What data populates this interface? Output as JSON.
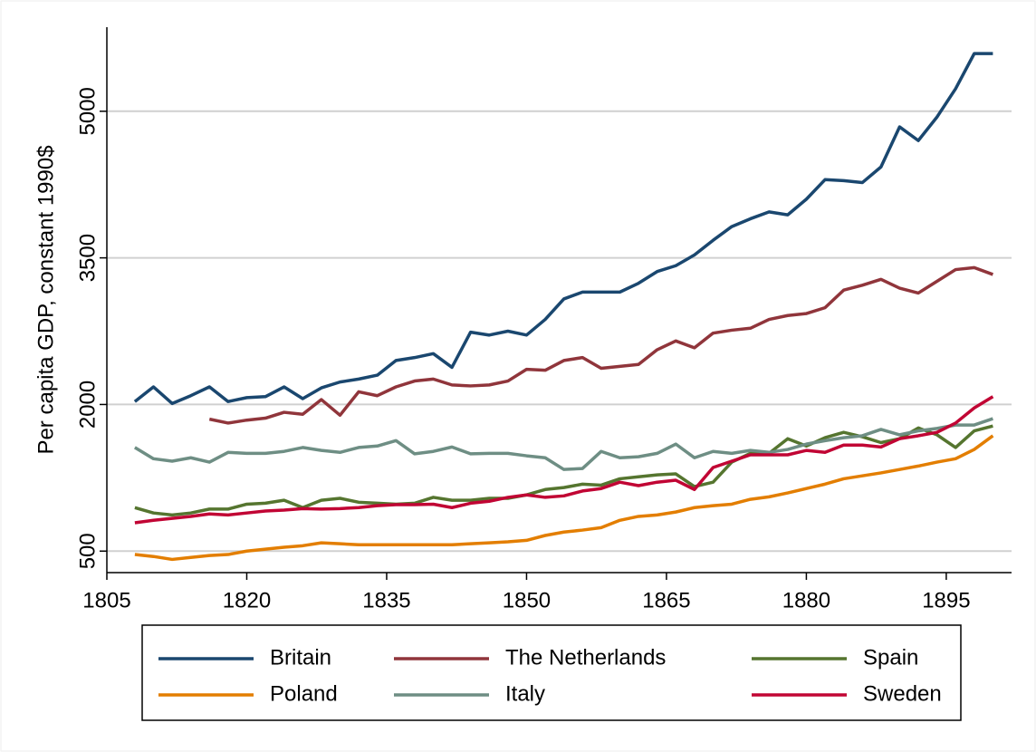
{
  "chart_data": {
    "type": "line",
    "y_label": "Per capita GDP, constant 1990$",
    "x": [
      1808,
      1810,
      1812,
      1814,
      1816,
      1818,
      1820,
      1822,
      1824,
      1826,
      1828,
      1830,
      1832,
      1834,
      1836,
      1838,
      1840,
      1842,
      1844,
      1846,
      1848,
      1850,
      1852,
      1854,
      1856,
      1858,
      1860,
      1862,
      1864,
      1866,
      1868,
      1870,
      1872,
      1874,
      1876,
      1878,
      1880,
      1882,
      1884,
      1886,
      1888,
      1890,
      1892,
      1894,
      1896,
      1898,
      1900
    ],
    "series": [
      {
        "name": "Britain",
        "color": "#1a476f",
        "values": [
          2030,
          2180,
          2010,
          2090,
          2180,
          2030,
          2070,
          2080,
          2180,
          2060,
          2170,
          2230,
          2260,
          2300,
          2450,
          2480,
          2520,
          2380,
          2740,
          2710,
          2750,
          2710,
          2870,
          3080,
          3150,
          3150,
          3150,
          3240,
          3360,
          3420,
          3530,
          3680,
          3820,
          3900,
          3970,
          3940,
          4100,
          4300,
          4290,
          4270,
          4430,
          4840,
          4700,
          4940,
          5230,
          5590,
          5590
        ]
      },
      {
        "name": "The Netherlands",
        "color": "#90353b",
        "values": [
          null,
          null,
          null,
          null,
          1850,
          1810,
          1840,
          1860,
          1920,
          1900,
          2050,
          1890,
          2130,
          2090,
          2180,
          2240,
          2260,
          2200,
          2190,
          2200,
          2240,
          2360,
          2350,
          2450,
          2480,
          2370,
          2390,
          2410,
          2560,
          2650,
          2580,
          2730,
          2760,
          2780,
          2870,
          2910,
          2930,
          2990,
          3170,
          3220,
          3280,
          3190,
          3140,
          3260,
          3380,
          3400,
          3330
        ]
      },
      {
        "name": "Spain",
        "color": "#55752f",
        "values": [
          945,
          890,
          870,
          890,
          930,
          930,
          980,
          990,
          1020,
          945,
          1020,
          1040,
          1000,
          990,
          980,
          990,
          1050,
          1020,
          1020,
          1040,
          1040,
          1075,
          1130,
          1150,
          1185,
          1175,
          1240,
          1260,
          1280,
          1290,
          1160,
          1205,
          1410,
          1500,
          1500,
          1650,
          1575,
          1660,
          1715,
          1670,
          1610,
          1650,
          1760,
          1690,
          1560,
          1730,
          1780
        ]
      },
      {
        "name": "Poland",
        "color": "#e37e00",
        "values": [
          465,
          445,
          415,
          435,
          455,
          465,
          500,
          520,
          540,
          555,
          585,
          575,
          565,
          565,
          565,
          565,
          565,
          565,
          575,
          585,
          595,
          610,
          660,
          695,
          715,
          740,
          815,
          855,
          870,
          900,
          945,
          965,
          980,
          1030,
          1055,
          1095,
          1140,
          1185,
          1240,
          1270,
          1300,
          1335,
          1370,
          1410,
          1445,
          1540,
          1680
        ]
      },
      {
        "name": "Italy",
        "color": "#6e8e84",
        "values": [
          1560,
          1445,
          1420,
          1455,
          1410,
          1510,
          1500,
          1500,
          1520,
          1560,
          1530,
          1510,
          1560,
          1575,
          1630,
          1495,
          1520,
          1565,
          1495,
          1500,
          1500,
          1475,
          1455,
          1335,
          1345,
          1520,
          1455,
          1465,
          1500,
          1595,
          1455,
          1520,
          1500,
          1530,
          1510,
          1540,
          1595,
          1630,
          1660,
          1680,
          1745,
          1690,
          1730,
          1755,
          1790,
          1790,
          1855
        ]
      },
      {
        "name": "Sweden",
        "color": "#c10534",
        "values": [
          790,
          815,
          835,
          855,
          880,
          870,
          890,
          910,
          920,
          935,
          930,
          935,
          945,
          965,
          975,
          975,
          980,
          945,
          990,
          1010,
          1050,
          1075,
          1050,
          1065,
          1115,
          1140,
          1205,
          1170,
          1205,
          1225,
          1130,
          1355,
          1420,
          1485,
          1485,
          1485,
          1530,
          1510,
          1585,
          1585,
          1565,
          1650,
          1680,
          1715,
          1810,
          1965,
          2080
        ]
      }
    ],
    "xlim": [
      1805,
      1902
    ],
    "xticks": [
      1805,
      1820,
      1835,
      1850,
      1865,
      1880,
      1895
    ],
    "ylim": [
      280,
      5860
    ],
    "yticks": [
      500,
      2000,
      3500,
      5000
    ],
    "grid": true,
    "legend": "bottom"
  }
}
